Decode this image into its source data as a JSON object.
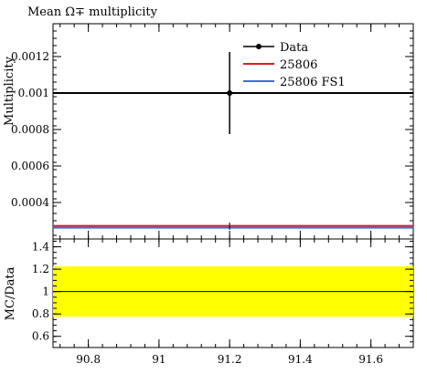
{
  "chart_data": [
    {
      "type": "line",
      "title": "Mean Ω∓ multiplicity",
      "ylabel": "Multiplicity",
      "xlabel": "",
      "xlim": [
        90.7,
        91.72
      ],
      "ylim": [
        0.0002,
        0.00138
      ],
      "x_ticks": [
        90.8,
        91,
        91.2,
        91.4,
        91.6
      ],
      "x_tick_labels": [
        "90.8",
        "91",
        "91.2",
        "91.4",
        "91.6"
      ],
      "y_ticks": [
        0.0004,
        0.0006,
        0.0008,
        0.001,
        0.0012
      ],
      "y_tick_labels": [
        "0.0004",
        "0.0006",
        "0.0008",
        "0.001",
        "0.0012"
      ],
      "legend_position": "top-right",
      "series": [
        {
          "name": "Data",
          "color": "#000000",
          "kind": "points",
          "points": [
            {
              "x": 91.2,
              "y": 0.001,
              "yerr_low": 0.000225,
              "yerr_high": 0.000225
            }
          ],
          "band": [
            {
              "y": 0.001
            }
          ]
        },
        {
          "name": "25806",
          "color": "#e41a1c",
          "kind": "hline",
          "y": 0.000272
        },
        {
          "name": "25806 FS1",
          "color": "#3b6fd8",
          "kind": "hline",
          "y": 0.000262
        }
      ],
      "extra_marks": [
        {
          "x": 91.2,
          "y_low": 0.00025,
          "y_high": 0.00029
        }
      ]
    },
    {
      "type": "line",
      "title": "",
      "ylabel": "MC/Data",
      "xlabel": "",
      "xlim": [
        90.7,
        91.72
      ],
      "ylim": [
        0.5,
        1.47
      ],
      "y_ticks": [
        0.6,
        0.8,
        1,
        1.2,
        1.4
      ],
      "y_tick_labels": [
        "0.6",
        "0.8",
        "1",
        "1.2",
        "1.4"
      ],
      "x_ticks": [
        90.8,
        91,
        91.2,
        91.4,
        91.6
      ],
      "x_tick_labels": [
        "90.8",
        "91",
        "91.2",
        "91.4",
        "91.6"
      ],
      "band": {
        "low": 0.775,
        "high": 1.225,
        "color": "#ffff00"
      },
      "reference_line": 1
    }
  ]
}
